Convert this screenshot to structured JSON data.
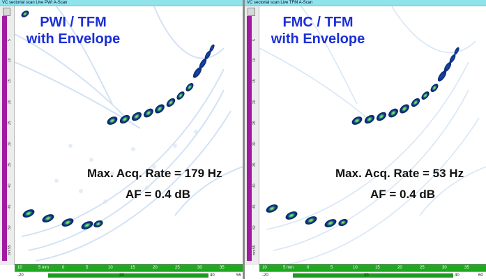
{
  "left": {
    "window_title": "VC sectorial scan Live PWI A-Scan",
    "heading_line1": "PWI / TFM",
    "heading_line2": "with Envelope",
    "rate_text": "Max. Acq. Rate = 179 Hz",
    "af_text": "AF = 0.4 dB",
    "ruler_ticks": [
      "5",
      "10",
      "15",
      "20",
      "25",
      "30",
      "35",
      "40",
      "45",
      "50",
      "55"
    ],
    "ruler_unit": "mm",
    "scale_top_labels": [
      "10",
      "5 mm",
      "0",
      "5",
      "10",
      "15",
      "20",
      "25",
      "30",
      "35"
    ],
    "scale_bottom_labels": [
      "-20",
      "",
      "20",
      "40",
      "55"
    ]
  },
  "right": {
    "window_title": "VC sectorial scan Live TFM A-Scan",
    "heading_line1": "FMC / TFM",
    "heading_line2": "with Envelope",
    "rate_text": "Max. Acq. Rate = 53 Hz",
    "af_text": "AF = 0.4 dB",
    "ruler_ticks": [
      "5",
      "10",
      "15",
      "20",
      "25",
      "30",
      "35",
      "40",
      "45",
      "50",
      "55"
    ],
    "ruler_unit": "mm",
    "scale_top_labels": [
      "10",
      "5 mm",
      "0",
      "5",
      "10",
      "15",
      "20",
      "25",
      "30",
      "35"
    ],
    "scale_bottom_labels": [
      "-20",
      "",
      "20",
      "40",
      "60"
    ]
  },
  "colors": {
    "heading": "#1b2fd6",
    "ruler_track": "#a21aa2",
    "scale_green": "#21a821",
    "titlebar": "#8fe3ea"
  }
}
